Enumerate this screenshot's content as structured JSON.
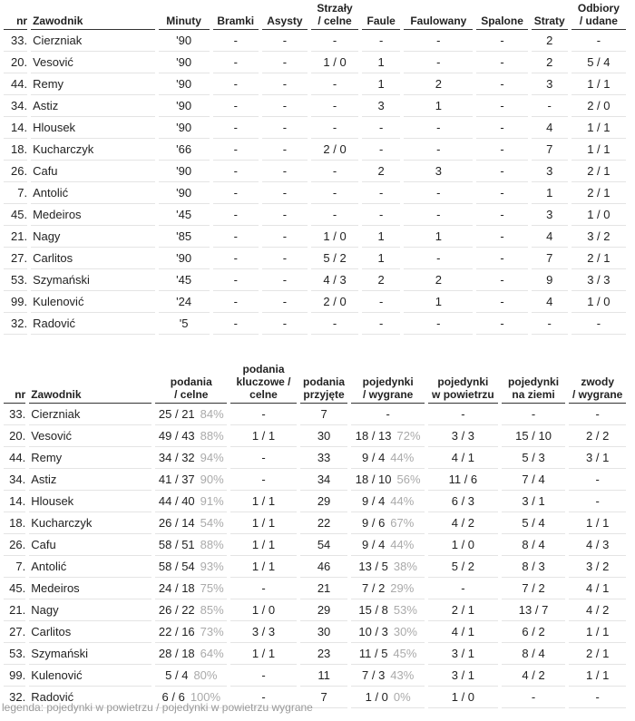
{
  "table1": {
    "headers": [
      [
        "nr"
      ],
      [
        "Zawodnik"
      ],
      [
        "Minuty"
      ],
      [
        "Bramki"
      ],
      [
        "Asysty"
      ],
      [
        "Strzały",
        "/ celne"
      ],
      [
        "Faule"
      ],
      [
        "Faulowany"
      ],
      [
        "Spalone"
      ],
      [
        "Straty"
      ],
      [
        "Odbiory",
        "/ udane"
      ]
    ],
    "rows": [
      [
        "33.",
        "Cierzniak",
        "'90",
        "-",
        "-",
        "-",
        "-",
        "-",
        "-",
        "2",
        "-"
      ],
      [
        "20.",
        "Vesović",
        "'90",
        "-",
        "-",
        "1 / 0",
        "1",
        "-",
        "-",
        "2",
        "5 / 4"
      ],
      [
        "44.",
        "Remy",
        "'90",
        "-",
        "-",
        "-",
        "1",
        "2",
        "-",
        "3",
        "1 / 1"
      ],
      [
        "34.",
        "Astiz",
        "'90",
        "-",
        "-",
        "-",
        "3",
        "1",
        "-",
        "-",
        "2 / 0"
      ],
      [
        "14.",
        "Hlousek",
        "'90",
        "-",
        "-",
        "-",
        "-",
        "-",
        "-",
        "4",
        "1 / 1"
      ],
      [
        "18.",
        "Kucharczyk",
        "'66",
        "-",
        "-",
        "2 / 0",
        "-",
        "-",
        "-",
        "7",
        "1 / 1"
      ],
      [
        "26.",
        "Cafu",
        "'90",
        "-",
        "-",
        "-",
        "2",
        "3",
        "-",
        "3",
        "2 / 1"
      ],
      [
        "7.",
        "Antolić",
        "'90",
        "-",
        "-",
        "-",
        "-",
        "-",
        "-",
        "1",
        "2 / 1"
      ],
      [
        "45.",
        "Medeiros",
        "'45",
        "-",
        "-",
        "-",
        "-",
        "-",
        "-",
        "3",
        "1 / 0"
      ],
      [
        "21.",
        "Nagy",
        "'85",
        "-",
        "-",
        "1 / 0",
        "1",
        "1",
        "-",
        "4",
        "3 / 2"
      ],
      [
        "27.",
        "Carlitos",
        "'90",
        "-",
        "-",
        "5 / 2",
        "1",
        "-",
        "-",
        "7",
        "2 / 1"
      ],
      [
        "53.",
        "Szymański",
        "'45",
        "-",
        "-",
        "4 / 3",
        "2",
        "2",
        "-",
        "9",
        "3 / 3"
      ],
      [
        "99.",
        "Kulenović",
        "'24",
        "-",
        "-",
        "2 / 0",
        "-",
        "1",
        "-",
        "4",
        "1 / 0"
      ],
      [
        "32.",
        "Radović",
        "'5",
        "-",
        "-",
        "-",
        "-",
        "-",
        "-",
        "-",
        "-"
      ]
    ]
  },
  "table2": {
    "headers": [
      [
        "nr"
      ],
      [
        "Zawodnik"
      ],
      [
        "podania",
        "/ celne"
      ],
      [
        "podania",
        "kluczowe /",
        "celne"
      ],
      [
        "podania",
        "przyjęte"
      ],
      [
        "pojedynki",
        "/ wygrane"
      ],
      [
        "pojedynki",
        "w powietrzu"
      ],
      [
        "pojedynki",
        "na ziemi"
      ],
      [
        "zwody",
        "/ wygrane"
      ]
    ],
    "rows": [
      [
        "33.",
        "Cierzniak",
        {
          "text": "25 / 21",
          "pct": "84%"
        },
        "-",
        "7",
        "-",
        "-",
        "-",
        "-"
      ],
      [
        "20.",
        "Vesović",
        {
          "text": "49 / 43",
          "pct": "88%"
        },
        "1 / 1",
        "30",
        {
          "text": "18 / 13",
          "pct": "72%"
        },
        "3 / 3",
        "15 / 10",
        "2 / 2"
      ],
      [
        "44.",
        "Remy",
        {
          "text": "34 / 32",
          "pct": "94%"
        },
        "-",
        "33",
        {
          "text": "9 / 4",
          "pct": "44%"
        },
        "4 / 1",
        "5 / 3",
        "3 / 1"
      ],
      [
        "34.",
        "Astiz",
        {
          "text": "41 / 37",
          "pct": "90%"
        },
        "-",
        "34",
        {
          "text": "18 / 10",
          "pct": "56%"
        },
        "11 / 6",
        "7 / 4",
        "-"
      ],
      [
        "14.",
        "Hlousek",
        {
          "text": "44 / 40",
          "pct": "91%"
        },
        "1 / 1",
        "29",
        {
          "text": "9 / 4",
          "pct": "44%"
        },
        "6 / 3",
        "3 / 1",
        "-"
      ],
      [
        "18.",
        "Kucharczyk",
        {
          "text": "26 / 14",
          "pct": "54%"
        },
        "1 / 1",
        "22",
        {
          "text": "9 / 6",
          "pct": "67%"
        },
        "4 / 2",
        "5 / 4",
        "1 / 1"
      ],
      [
        "26.",
        "Cafu",
        {
          "text": "58 / 51",
          "pct": "88%"
        },
        "1 / 1",
        "54",
        {
          "text": "9 / 4",
          "pct": "44%"
        },
        "1 / 0",
        "8 / 4",
        "4 / 3"
      ],
      [
        "7.",
        "Antolić",
        {
          "text": "58 / 54",
          "pct": "93%"
        },
        "1 / 1",
        "46",
        {
          "text": "13 / 5",
          "pct": "38%"
        },
        "5 / 2",
        "8 / 3",
        "3 / 2"
      ],
      [
        "45.",
        "Medeiros",
        {
          "text": "24 / 18",
          "pct": "75%"
        },
        "-",
        "21",
        {
          "text": "7 / 2",
          "pct": "29%"
        },
        "-",
        "7 / 2",
        "4 / 1"
      ],
      [
        "21.",
        "Nagy",
        {
          "text": "26 / 22",
          "pct": "85%"
        },
        "1 / 0",
        "29",
        {
          "text": "15 / 8",
          "pct": "53%"
        },
        "2 / 1",
        "13 / 7",
        "4 / 2"
      ],
      [
        "27.",
        "Carlitos",
        {
          "text": "22 / 16",
          "pct": "73%"
        },
        "3 / 3",
        "30",
        {
          "text": "10 / 3",
          "pct": "30%"
        },
        "4 / 1",
        "6 / 2",
        "1 / 1"
      ],
      [
        "53.",
        "Szymański",
        {
          "text": "28 / 18",
          "pct": "64%"
        },
        "1 / 1",
        "23",
        {
          "text": "11 / 5",
          "pct": "45%"
        },
        "3 / 1",
        "8 / 4",
        "2 / 1"
      ],
      [
        "99.",
        "Kulenović",
        {
          "text": "5 / 4",
          "pct": "80%"
        },
        "-",
        "11",
        {
          "text": "7 / 3",
          "pct": "43%"
        },
        "3 / 1",
        "4 / 2",
        "1 / 1"
      ],
      [
        "32.",
        "Radović",
        {
          "text": "6 / 6",
          "pct": "100%"
        },
        "-",
        "7",
        {
          "text": "1 / 0",
          "pct": "0%"
        },
        "1 / 0",
        "-",
        "-"
      ]
    ]
  },
  "legend": "legenda: pojedynki w powietrzu / pojedynki w powietrzu wygrane"
}
